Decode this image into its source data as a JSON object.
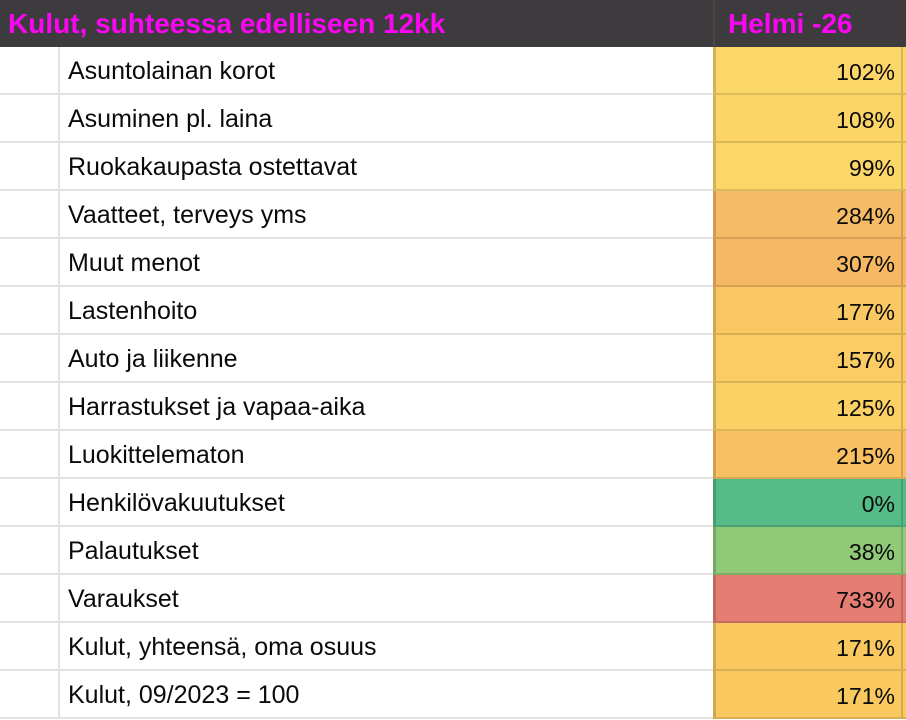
{
  "header": {
    "title": "Kulut, suhteessa edelliseen 12kk",
    "period": "Helmi -26"
  },
  "colors": {
    "header_bg": "#3d3b3e",
    "header_text": "#fb06f2",
    "grid_line": "#e2e2e2",
    "text": "#0a0a0a",
    "scale_low_green": "#55bb87",
    "scale_mid_yellow": "#fcd668",
    "scale_high_red": "#e57d72"
  },
  "rows": [
    {
      "label": "Asuntolainan korot",
      "value": "102%",
      "color": "#fcd668"
    },
    {
      "label": "Asuminen pl. laina",
      "value": "108%",
      "color": "#fcd566"
    },
    {
      "label": "Ruokakaupasta ostettavat",
      "value": "99%",
      "color": "#fcd768"
    },
    {
      "label": "Vaatteet, terveys yms",
      "value": "284%",
      "color": "#f6bb65"
    },
    {
      "label": "Muut menot",
      "value": "307%",
      "color": "#f7b863"
    },
    {
      "label": "Lastenhoito",
      "value": "177%",
      "color": "#f9c862"
    },
    {
      "label": "Auto ja liikenne",
      "value": "157%",
      "color": "#facc63"
    },
    {
      "label": "Harrastukset ja vapaa-aika",
      "value": "125%",
      "color": "#fbd165"
    },
    {
      "label": "Luokittelematon",
      "value": "215%",
      "color": "#f8c061"
    },
    {
      "label": "Henkilövakuutukset",
      "value": "0%",
      "color": "#55bb87"
    },
    {
      "label": "Palautukset",
      "value": "38%",
      "color": "#90c977"
    },
    {
      "label": "Varaukset",
      "value": "733%",
      "color": "#e57d72"
    },
    {
      "label": "Kulut, yhteensä, oma osuus",
      "value": "171%",
      "color": "#f9c95f"
    },
    {
      "label": "Kulut, 09/2023 = 100",
      "value": "171%",
      "color": "#f9c95f"
    }
  ],
  "chart_data": {
    "type": "table",
    "title": "Kulut, suhteessa edelliseen 12kk",
    "column_headers": [
      "Kulut, suhteessa edelliseen 12kk",
      "Helmi -26"
    ],
    "categories": [
      "Asuntolainan korot",
      "Asuminen pl. laina",
      "Ruokakaupasta ostettavat",
      "Vaatteet, terveys yms",
      "Muut menot",
      "Lastenhoito",
      "Auto ja liikenne",
      "Harrastukset ja vapaa-aika",
      "Luokittelematon",
      "Henkilövakuutukset",
      "Palautukset",
      "Varaukset",
      "Kulut, yhteensä, oma osuus",
      "Kulut, 09/2023 = 100"
    ],
    "values_percent": [
      102,
      108,
      99,
      284,
      307,
      177,
      157,
      125,
      215,
      0,
      38,
      733,
      171,
      171
    ],
    "layout_hints": {
      "conditional_color_scale": {
        "low": "#55bb87",
        "mid": "#fcd668",
        "high": "#e57d72"
      },
      "value_alignment": "right",
      "grid": true
    }
  }
}
